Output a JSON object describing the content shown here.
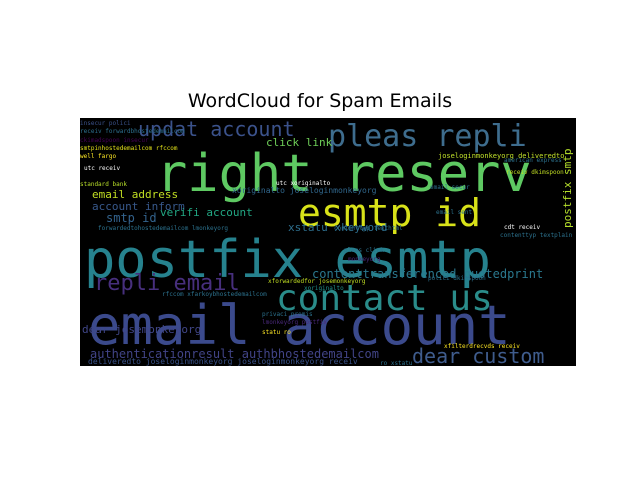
{
  "chart_data": {
    "type": "wordcloud",
    "title": "WordCloud for Spam Emails",
    "background": "#000000",
    "colormap": "viridis",
    "words": [
      {
        "text": "email account",
        "weight": 1.0,
        "color": "#3b4a8c"
      },
      {
        "text": "postfix esmtp",
        "weight": 0.98,
        "color": "#26828e"
      },
      {
        "text": "right reserv",
        "weight": 0.92,
        "color": "#5ec962"
      },
      {
        "text": "esmtp id",
        "weight": 0.74,
        "color": "#d8e219"
      },
      {
        "text": "contact us",
        "weight": 0.7,
        "color": "#2a8c8a"
      },
      {
        "text": "pleas repli",
        "weight": 0.58,
        "color": "#3e6d8e"
      },
      {
        "text": "updat account",
        "weight": 0.46,
        "color": "#3b528b"
      },
      {
        "text": "repli email",
        "weight": 0.46,
        "color": "#472f7d"
      },
      {
        "text": "dear custom",
        "weight": 0.44,
        "color": "#3f5c8d"
      },
      {
        "text": "contenttransferencod quotedprint",
        "weight": 0.26,
        "color": "#2a788e"
      },
      {
        "text": "authenticationresult authbhostedemailcom",
        "weight": 0.24,
        "color": "#414487"
      },
      {
        "text": "dear josemonkeyorg",
        "weight": 0.22,
        "color": "#404688"
      },
      {
        "text": "account inform",
        "weight": 0.2,
        "color": "#38598c"
      },
      {
        "text": "email address",
        "weight": 0.2,
        "color": "#c2df23"
      },
      {
        "text": "smtp id",
        "weight": 0.2,
        "color": "#33638d"
      },
      {
        "text": "verifi account",
        "weight": 0.18,
        "color": "#22a884"
      },
      {
        "text": "click link",
        "weight": 0.18,
        "color": "#6ece58"
      },
      {
        "text": "xstatu xkeyword",
        "weight": 0.16,
        "color": "#2e6f8e"
      },
      {
        "text": "postfix smtp",
        "weight": 0.17,
        "color": "#b5de2b"
      },
      {
        "text": "forwardedtohostedemailcom lmonkeyorg",
        "weight": 0.11,
        "color": "#2c728e"
      },
      {
        "text": "xoriginalto joseloginmonkeyorg",
        "weight": 0.12,
        "color": "#31688e"
      },
      {
        "text": "deliveredto joseloginmonkeyorg joseloginmonkeyorg receiv",
        "weight": 0.12,
        "color": "#3a538b"
      },
      {
        "text": "joseloginmonkeyorg deliveredto",
        "weight": 0.09,
        "color": "#c0e02a"
      },
      {
        "text": "utc receiv",
        "weight": 0.09,
        "color": "#ffffff"
      },
      {
        "text": "receiv forwardbhostedemailcom",
        "weight": 0.09,
        "color": "#2d708e"
      },
      {
        "text": "standard bank",
        "weight": 0.07,
        "color": "#b8de29"
      },
      {
        "text": "smtpinhostedemailcom rfccom",
        "weight": 0.07,
        "color": "#e5e419"
      },
      {
        "text": "ckimadspoon insecur",
        "weight": 0.07,
        "color": "#440154"
      },
      {
        "text": "insecur polici",
        "weight": 0.07,
        "color": "#3b528b"
      },
      {
        "text": "pleas click",
        "weight": 0.07,
        "color": "#2c728e"
      },
      {
        "text": "monkeyorg",
        "weight": 0.07,
        "color": "#482878"
      },
      {
        "text": "lmonkeyorg postfix",
        "weight": 0.07,
        "color": "#482878"
      },
      {
        "text": "statu ro",
        "weight": 0.07,
        "color": "#fde725"
      },
      {
        "text": "utc xoriginalto",
        "weight": 0.07,
        "color": "#ffffff"
      },
      {
        "text": "email secur",
        "weight": 0.07,
        "color": "#2c728e"
      },
      {
        "text": "email sent",
        "weight": 0.06,
        "color": "#2c728e"
      },
      {
        "text": "xoriginalto",
        "weight": 0.06,
        "color": "#21918c"
      },
      {
        "text": "polici dkimspoon",
        "weight": 0.06,
        "color": "#2c728e"
      },
      {
        "text": "privaci promis",
        "weight": 0.06,
        "color": "#2c728e"
      },
      {
        "text": "xfilterdrecvds receiv",
        "weight": 0.06,
        "color": "#fde725"
      },
      {
        "text": "cdt receiv",
        "weight": 0.06,
        "color": "#ffffff"
      },
      {
        "text": "american express",
        "weight": 0.06,
        "color": "#2c728e"
      },
      {
        "text": "contenttyp textplain",
        "weight": 0.06,
        "color": "#2c728e"
      },
      {
        "text": "well fargo",
        "weight": 0.06,
        "color": "#fde725"
      },
      {
        "text": "receiv dkimspoon",
        "weight": 0.06,
        "color": "#c2df23"
      },
      {
        "text": "contenttyp texthtml",
        "weight": 0.06,
        "color": "#2c728e"
      },
      {
        "text": "rfccom xfarkoybhostedemailcom",
        "weight": 0.06,
        "color": "#2c728e"
      },
      {
        "text": "xforwardedfor josemonkeyorg",
        "weight": 0.06,
        "color": "#c2df23"
      },
      {
        "text": "ro xstatu",
        "weight": 0.05,
        "color": "#2c728e"
      }
    ]
  }
}
